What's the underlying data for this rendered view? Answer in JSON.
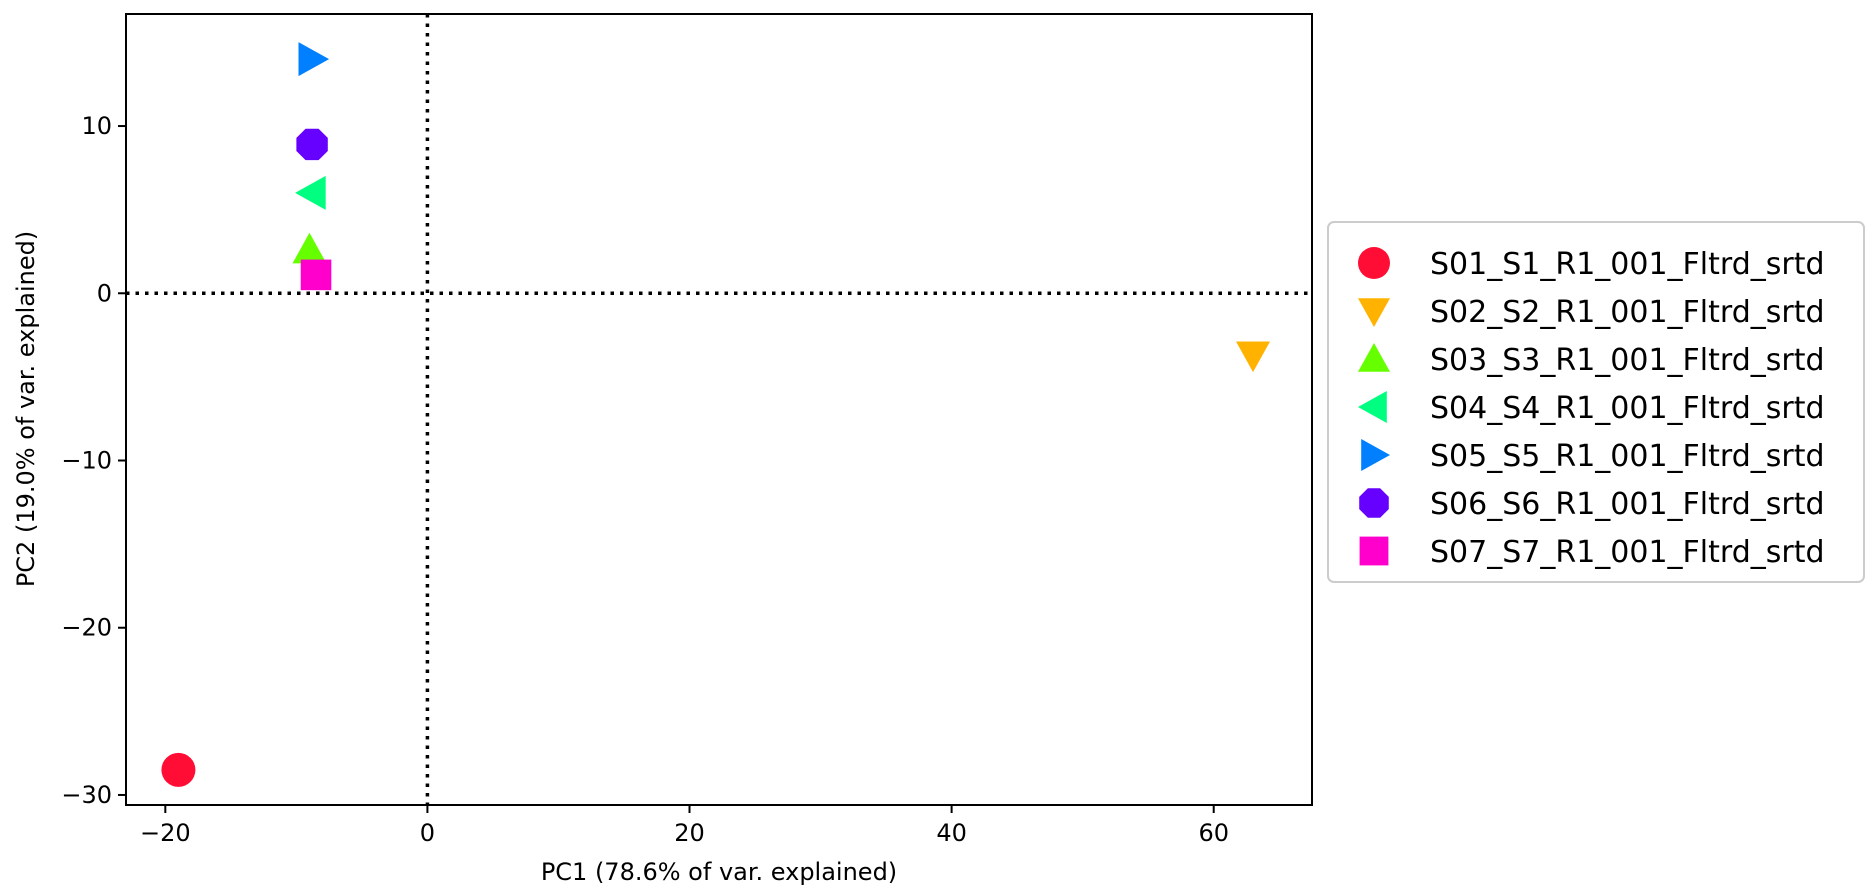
{
  "chart_data": {
    "type": "scatter",
    "title": "",
    "xlabel": "PC1 (78.6% of var. explained)",
    "ylabel": "PC2 (19.0% of var. explained)",
    "xlim": [
      -23,
      67.5
    ],
    "ylim": [
      -30.6,
      16.7
    ],
    "xticks": [
      -20,
      0,
      20,
      40,
      60
    ],
    "yticks": [
      -30,
      -20,
      -10,
      0,
      10
    ],
    "xtick_labels": [
      "−20",
      "0",
      "20",
      "40",
      "60"
    ],
    "ytick_labels": [
      "−30",
      "−20",
      "−10",
      "0",
      "10"
    ],
    "reference_lines": {
      "x": 0,
      "y": 0,
      "style": "dotted"
    },
    "grid": false,
    "legend_position": "outside-right",
    "series": [
      {
        "name": "S01_S1_R1_001_Fltrd_srtd",
        "x": -19.0,
        "y": -28.5,
        "marker": "circle",
        "color": "#ff0d35"
      },
      {
        "name": "S02_S2_R1_001_Fltrd_srtd",
        "x": 63.0,
        "y": -3.7,
        "marker": "triangle-down",
        "color": "#ffb300"
      },
      {
        "name": "S03_S3_R1_001_Fltrd_srtd",
        "x": -9.0,
        "y": 2.6,
        "marker": "triangle-up",
        "color": "#66ff00"
      },
      {
        "name": "S04_S4_R1_001_Fltrd_srtd",
        "x": -8.8,
        "y": 6.0,
        "marker": "triangle-left",
        "color": "#00ff80"
      },
      {
        "name": "S05_S5_R1_001_Fltrd_srtd",
        "x": -8.8,
        "y": 14.0,
        "marker": "triangle-right",
        "color": "#0080ff"
      },
      {
        "name": "S06_S6_R1_001_Fltrd_srtd",
        "x": -8.8,
        "y": 8.9,
        "marker": "octagon",
        "color": "#6600ff"
      },
      {
        "name": "S07_S7_R1_001_Fltrd_srtd",
        "x": -8.5,
        "y": 1.1,
        "marker": "square",
        "color": "#ff00cc"
      }
    ]
  }
}
